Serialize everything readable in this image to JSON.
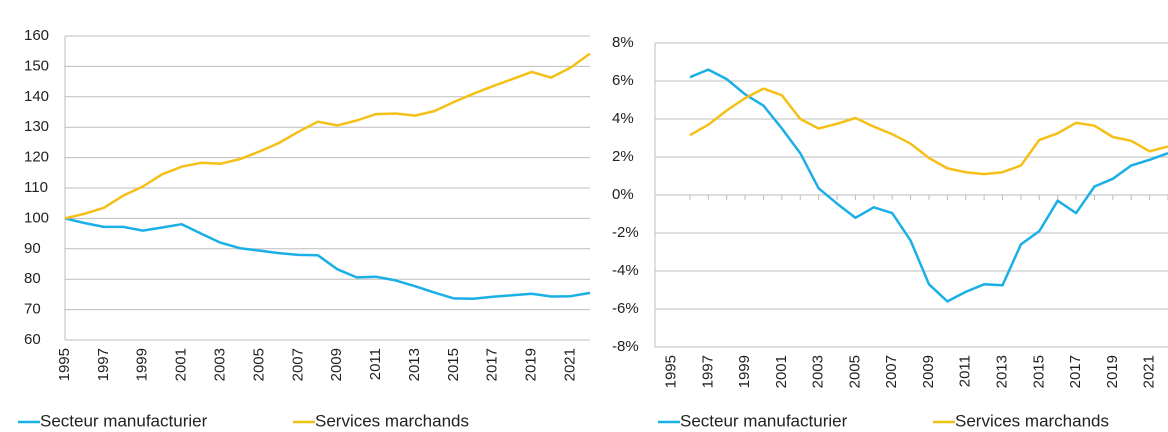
{
  "chart_data": [
    {
      "type": "line",
      "x": [
        1995,
        1996,
        1997,
        1998,
        1999,
        2000,
        2001,
        2002,
        2003,
        2004,
        2005,
        2006,
        2007,
        2008,
        2009,
        2010,
        2011,
        2012,
        2013,
        2014,
        2015,
        2016,
        2017,
        2018,
        2019,
        2020,
        2021,
        2022
      ],
      "xlim": [
        1995,
        2022
      ],
      "xticks": [
        1995,
        1997,
        1999,
        2001,
        2003,
        2005,
        2007,
        2009,
        2011,
        2013,
        2015,
        2017,
        2019,
        2021
      ],
      "ylim": [
        60,
        160
      ],
      "yticks": [
        60,
        70,
        80,
        90,
        100,
        110,
        120,
        130,
        140,
        150,
        160
      ],
      "grid": true,
      "series": [
        {
          "name": "Secteur manufacturier",
          "color": "#1aafe6",
          "values": [
            100,
            98.5,
            97.2,
            97.2,
            96,
            97,
            98.1,
            95,
            92,
            90.2,
            89.4,
            88.6,
            88,
            87.9,
            83.3,
            80.6,
            80.8,
            79.6,
            77.7,
            75.6,
            73.7,
            73.6,
            74.2,
            74.7,
            75.2,
            74.3,
            74.4,
            75.5
          ]
        },
        {
          "name": "Services marchands",
          "color": "#f5c016",
          "values": [
            100,
            101.5,
            103.5,
            107.5,
            110.5,
            114.5,
            117,
            118.3,
            118,
            119.5,
            122,
            124.8,
            128.5,
            131.8,
            130.6,
            132.2,
            134.3,
            134.5,
            133.8,
            135.3,
            138.3,
            141,
            143.5,
            145.8,
            148.2,
            146.3,
            149.6,
            154.2
          ]
        }
      ]
    },
    {
      "type": "line",
      "x": [
        1996,
        1997,
        1998,
        1999,
        2000,
        2001,
        2002,
        2003,
        2004,
        2005,
        2006,
        2007,
        2008,
        2009,
        2010,
        2011,
        2012,
        2013,
        2014,
        2015,
        2016,
        2017,
        2018,
        2019,
        2020,
        2021,
        2022
      ],
      "xlim": [
        1994.1,
        2022
      ],
      "xticks": [
        1995,
        1997,
        1999,
        2001,
        2003,
        2005,
        2007,
        2009,
        2011,
        2013,
        2015,
        2017,
        2019,
        2021
      ],
      "ylim": [
        -8,
        8
      ],
      "yticks": [
        {
          "value": -8,
          "label": "-8%"
        },
        {
          "value": -6,
          "label": "-6%"
        },
        {
          "value": -4,
          "label": "-4%"
        },
        {
          "value": -2,
          "label": "-2%"
        },
        {
          "value": 0,
          "label": "0%"
        },
        {
          "value": 2,
          "label": "2%"
        },
        {
          "value": 4,
          "label": "4%"
        },
        {
          "value": 6,
          "label": "6%"
        },
        {
          "value": 8,
          "label": "8%"
        }
      ],
      "grid": true,
      "series": [
        {
          "name": "Secteur manufacturier",
          "color": "#1aafe6",
          "values": [
            6.2,
            6.6,
            6.1,
            5.3,
            4.7,
            3.5,
            2.2,
            0.35,
            -0.45,
            -1.2,
            -0.65,
            -0.95,
            -2.4,
            -4.7,
            -5.6,
            -5.1,
            -4.7,
            -4.75,
            -2.6,
            -1.9,
            -0.3,
            -0.95,
            0.45,
            0.85,
            1.55,
            1.85,
            2.2
          ]
        },
        {
          "name": "Services marchands",
          "color": "#f5c016",
          "values": [
            3.15,
            3.7,
            4.45,
            5.1,
            5.6,
            5.25,
            4.0,
            3.5,
            3.75,
            4.05,
            3.6,
            3.2,
            2.7,
            1.95,
            1.4,
            1.2,
            1.1,
            1.2,
            1.55,
            2.9,
            3.25,
            3.8,
            3.65,
            3.05,
            2.85,
            2.3,
            2.55
          ]
        }
      ]
    }
  ]
}
